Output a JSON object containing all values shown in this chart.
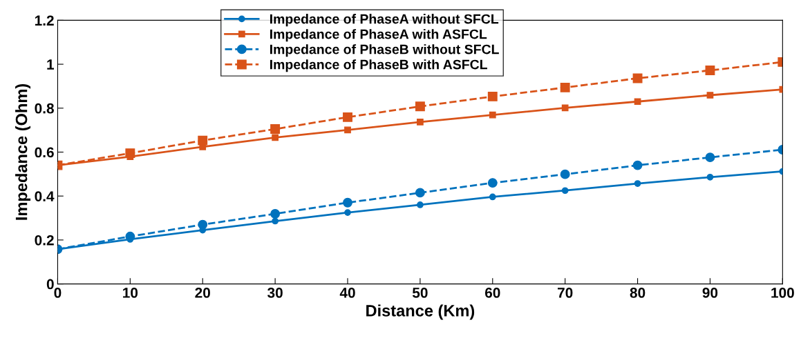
{
  "chart_data": {
    "type": "line",
    "xlabel": "Distance (Km)",
    "ylabel": "Impedance (Ohm)",
    "x": [
      0,
      10,
      20,
      30,
      40,
      50,
      60,
      70,
      80,
      90,
      100
    ],
    "series": [
      {
        "name": "Impedance of PhaseA without SFCL",
        "color": "#0072bd",
        "marker": "circle",
        "line_style": "solid",
        "values": [
          0.158,
          0.203,
          0.245,
          0.286,
          0.325,
          0.36,
          0.396,
          0.425,
          0.457,
          0.486,
          0.512
        ]
      },
      {
        "name": "Impedance of PhaseA with ASFCL",
        "color": "#d95319",
        "marker": "square",
        "line_style": "solid",
        "values": [
          0.54,
          0.579,
          0.624,
          0.666,
          0.701,
          0.737,
          0.769,
          0.801,
          0.83,
          0.859,
          0.885
        ]
      },
      {
        "name": "Impedance of PhaseB without SFCL",
        "color": "#0072bd",
        "marker": "circle",
        "line_style": "dashed",
        "values": [
          0.158,
          0.216,
          0.27,
          0.319,
          0.37,
          0.415,
          0.46,
          0.499,
          0.54,
          0.576,
          0.611
        ]
      },
      {
        "name": "Impedance of PhaseB with ASFCL",
        "color": "#d95319",
        "marker": "square",
        "line_style": "dashed",
        "values": [
          0.54,
          0.595,
          0.653,
          0.705,
          0.759,
          0.808,
          0.853,
          0.894,
          0.936,
          0.972,
          1.01
        ]
      }
    ],
    "xlim": [
      0,
      100
    ],
    "xticks": [
      0,
      10,
      20,
      30,
      40,
      50,
      60,
      70,
      80,
      90,
      100
    ],
    "ylim": [
      0,
      1.2
    ],
    "yticks": [
      0,
      0.2,
      0.4,
      0.6,
      0.8,
      1,
      1.2
    ],
    "grid": false,
    "legend": "top"
  }
}
